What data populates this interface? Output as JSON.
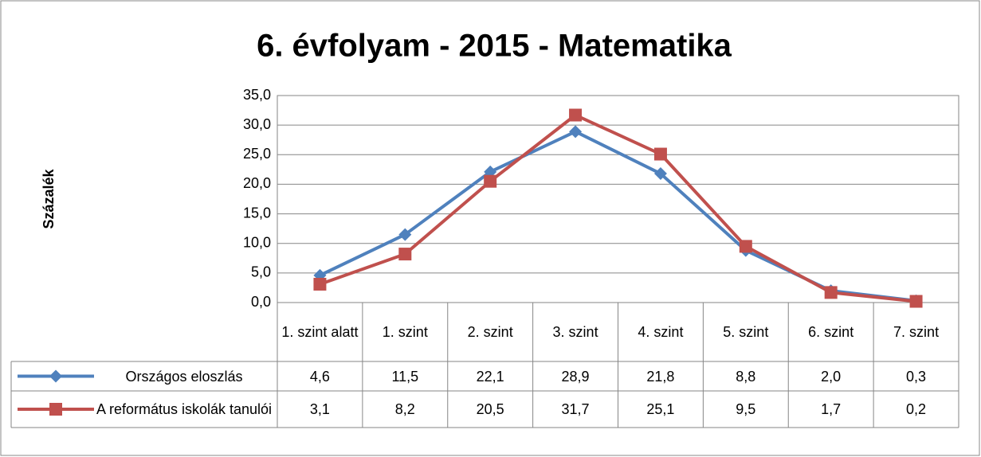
{
  "chart_data": {
    "type": "line",
    "title": "6. évfolyam - 2015 - Matematika",
    "y_label": "Százalék",
    "categories": [
      "1. szint alatt",
      "1. szint",
      "2. szint",
      "3. szint",
      "4. szint",
      "5. szint",
      "6. szint",
      "7. szint"
    ],
    "series": [
      {
        "name": "Országos eloszlás",
        "color": "#4f81bd",
        "marker": "diamond",
        "values": [
          4.6,
          11.5,
          22.1,
          28.9,
          21.8,
          8.8,
          2.0,
          0.3
        ],
        "value_labels": [
          "4,6",
          "11,5",
          "22,1",
          "28,9",
          "21,8",
          "8,8",
          "2,0",
          "0,3"
        ]
      },
      {
        "name": "A református iskolák tanulói",
        "color": "#c0504d",
        "marker": "square",
        "values": [
          3.1,
          8.2,
          20.5,
          31.7,
          25.1,
          9.5,
          1.7,
          0.2
        ],
        "value_labels": [
          "3,1",
          "8,2",
          "20,5",
          "31,7",
          "25,1",
          "9,5",
          "1,7",
          "0,2"
        ]
      }
    ],
    "ylim": [
      0,
      35
    ],
    "yticks": [
      {
        "value": 0,
        "label": "0,0"
      },
      {
        "value": 5,
        "label": "5,0"
      },
      {
        "value": 10,
        "label": "10,0"
      },
      {
        "value": 15,
        "label": "15,0"
      },
      {
        "value": 20,
        "label": "20,0"
      },
      {
        "value": 25,
        "label": "25,0"
      },
      {
        "value": 30,
        "label": "30,0"
      },
      {
        "value": 35,
        "label": "35,0"
      }
    ],
    "grid": true,
    "data_table": true
  }
}
